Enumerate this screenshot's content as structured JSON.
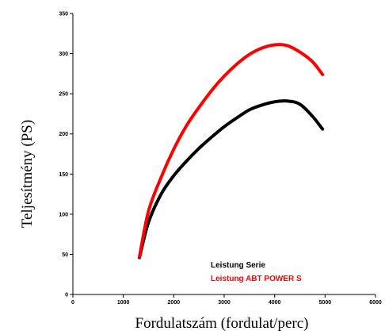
{
  "chart_data": {
    "type": "line",
    "title": "",
    "xlabel": "Fordulatszám (fordulat/perc)",
    "ylabel": "Teljesítmény (PS)",
    "xlim": [
      0,
      6000
    ],
    "ylim": [
      0,
      350
    ],
    "x_ticks": [
      0,
      1000,
      2000,
      3000,
      4000,
      5000,
      6000
    ],
    "y_ticks": [
      0,
      50,
      100,
      150,
      200,
      250,
      300,
      350
    ],
    "grid": false,
    "legend_position": "bottom-right",
    "series": [
      {
        "name": "Leistung Serie",
        "color": "#000000",
        "x": [
          1320,
          1500,
          1750,
          2000,
          2250,
          2500,
          2750,
          3000,
          3250,
          3500,
          3750,
          4000,
          4250,
          4500,
          4750,
          4950
        ],
        "y": [
          46,
          90,
          125,
          148,
          166,
          182,
          196,
          209,
          220,
          230,
          236,
          240,
          241,
          237,
          222,
          206
        ]
      },
      {
        "name": "Leistung ABT POWER S",
        "color": "#ff0000",
        "x": [
          1320,
          1500,
          1750,
          2000,
          2250,
          2500,
          2750,
          3000,
          3250,
          3500,
          3750,
          4000,
          4250,
          4500,
          4750,
          4950
        ],
        "y": [
          47,
          104,
          146,
          181,
          210,
          233,
          254,
          272,
          287,
          299,
          307,
          311,
          310,
          302,
          290,
          274
        ]
      }
    ]
  }
}
